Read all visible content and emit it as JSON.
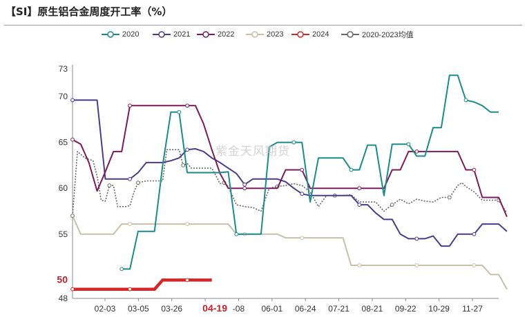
{
  "title": "【SI】原生铝合金周度开工率（%）",
  "watermark": "紫金天风期货",
  "legend": [
    {
      "name": "2020",
      "color": "#1a8a8a"
    },
    {
      "name": "2021",
      "color": "#4b3a8c"
    },
    {
      "name": "2022",
      "color": "#7a1a5a"
    },
    {
      "name": "2023",
      "color": "#c8bfa8"
    },
    {
      "name": "2024",
      "color": "#d62728"
    },
    {
      "name": "2020-2023均值",
      "color": "#666666"
    }
  ],
  "chart_data": {
    "type": "line",
    "title": "【SI】原生铝合金周度开工率（%）",
    "xlabel": "",
    "ylabel": "",
    "ylim": [
      48,
      73
    ],
    "y_ticks": [
      "48",
      "50",
      "55",
      "60",
      "65",
      "70",
      "73"
    ],
    "highlight_tick_y": "50",
    "x_ticks": [
      "02-03",
      "03-05",
      "03-26",
      "04-19",
      "-08",
      "06-01",
      "06-24",
      "07-21",
      "08-21",
      "09-22",
      "10-29",
      "11-27"
    ],
    "highlight_tick_x": "04-19",
    "grid": false,
    "legend_position": "top",
    "x_range": [
      0,
      52
    ],
    "series": [
      {
        "name": "2020",
        "color": "#1a8a8a",
        "points": [
          [
            6,
            51.2
          ],
          [
            7,
            51.2
          ],
          [
            8,
            55.3
          ],
          [
            9,
            55.3
          ],
          [
            10,
            55.3
          ],
          [
            11,
            62.5
          ],
          [
            12,
            68.3
          ],
          [
            13,
            68.3
          ],
          [
            14,
            61.7
          ],
          [
            15,
            61.7
          ],
          [
            16,
            61.7
          ],
          [
            17,
            61.7
          ],
          [
            18,
            61.7
          ],
          [
            19,
            61.8
          ],
          [
            20,
            55
          ],
          [
            21,
            55
          ],
          [
            22,
            55
          ],
          [
            23,
            55
          ],
          [
            24,
            64.5
          ],
          [
            25,
            65
          ],
          [
            26,
            65
          ],
          [
            27,
            65
          ],
          [
            28,
            65
          ],
          [
            29,
            58.5
          ],
          [
            30,
            63.3
          ],
          [
            31,
            63.3
          ],
          [
            32,
            63.3
          ],
          [
            33,
            63.3
          ],
          [
            34,
            62
          ],
          [
            35,
            62
          ],
          [
            36,
            64.7
          ],
          [
            37,
            64.7
          ],
          [
            38,
            59.2
          ],
          [
            39,
            64.8
          ],
          [
            40,
            64.8
          ],
          [
            41,
            64.8
          ],
          [
            42,
            63.5
          ],
          [
            43,
            63.5
          ],
          [
            44,
            66.6
          ],
          [
            45,
            66.6
          ],
          [
            46,
            72.3
          ],
          [
            47,
            72.3
          ],
          [
            48,
            69.6
          ],
          [
            49,
            69.4
          ],
          [
            50,
            69
          ],
          [
            51,
            68.3
          ],
          [
            52,
            68.3
          ]
        ]
      },
      {
        "name": "2021",
        "color": "#4b3a8c",
        "points": [
          [
            0,
            69.6
          ],
          [
            1,
            69.6
          ],
          [
            2,
            69.6
          ],
          [
            3,
            69.6
          ],
          [
            4,
            61
          ],
          [
            5,
            61
          ],
          [
            6,
            61
          ],
          [
            7,
            61
          ],
          [
            8,
            61.7
          ],
          [
            9,
            62.8
          ],
          [
            10,
            62.8
          ],
          [
            11,
            62.8
          ],
          [
            12,
            63
          ],
          [
            13,
            63.3
          ],
          [
            14,
            64.2
          ],
          [
            15,
            64.3
          ],
          [
            16,
            64
          ],
          [
            17,
            63.3
          ],
          [
            18,
            62.8
          ],
          [
            19,
            62.2
          ],
          [
            20,
            61.6
          ],
          [
            21,
            60.4
          ],
          [
            22,
            61
          ],
          [
            23,
            61
          ],
          [
            24,
            61
          ],
          [
            25,
            61
          ],
          [
            26,
            60.7
          ],
          [
            27,
            60
          ],
          [
            28,
            59.4
          ],
          [
            29,
            59.2
          ],
          [
            30,
            59.2
          ],
          [
            31,
            59.2
          ],
          [
            32,
            59.2
          ],
          [
            33,
            59.2
          ],
          [
            34,
            59.2
          ],
          [
            35,
            58.2
          ],
          [
            36,
            58.2
          ],
          [
            37,
            57.3
          ],
          [
            38,
            56.6
          ],
          [
            39,
            56.6
          ],
          [
            40,
            55
          ],
          [
            41,
            54.5
          ],
          [
            42,
            54.5
          ],
          [
            43,
            54.5
          ],
          [
            44,
            54.8
          ],
          [
            45,
            53.7
          ],
          [
            46,
            53.7
          ],
          [
            47,
            55
          ],
          [
            48,
            55
          ],
          [
            49,
            55
          ],
          [
            50,
            56.1
          ],
          [
            51,
            56.1
          ],
          [
            52,
            56.1
          ],
          [
            53,
            55.3
          ]
        ]
      },
      {
        "name": "2022",
        "color": "#7a1a5a",
        "points": [
          [
            0,
            65.3
          ],
          [
            1,
            64.8
          ],
          [
            2,
            62.8
          ],
          [
            3,
            59.7
          ],
          [
            4,
            61.8
          ],
          [
            5,
            64
          ],
          [
            6,
            64
          ],
          [
            7,
            69
          ],
          [
            8,
            69
          ],
          [
            9,
            69
          ],
          [
            10,
            69
          ],
          [
            11,
            69
          ],
          [
            12,
            69
          ],
          [
            13,
            69
          ],
          [
            14,
            69
          ],
          [
            15,
            69
          ],
          [
            16,
            67
          ],
          [
            17,
            64.2
          ],
          [
            18,
            61.6
          ],
          [
            19,
            60
          ],
          [
            20,
            60
          ],
          [
            21,
            60
          ],
          [
            22,
            60
          ],
          [
            23,
            60
          ],
          [
            24,
            60
          ],
          [
            25,
            60
          ],
          [
            26,
            62
          ],
          [
            27,
            62
          ],
          [
            28,
            62
          ],
          [
            29,
            60
          ],
          [
            30,
            60
          ],
          [
            31,
            60
          ],
          [
            32,
            60
          ],
          [
            33,
            60
          ],
          [
            34,
            60
          ],
          [
            35,
            60
          ],
          [
            36,
            60
          ],
          [
            37,
            60
          ],
          [
            38,
            60
          ],
          [
            39,
            62
          ],
          [
            40,
            62
          ],
          [
            41,
            64
          ],
          [
            42,
            64
          ],
          [
            43,
            64
          ],
          [
            44,
            64
          ],
          [
            45,
            64
          ],
          [
            46,
            64
          ],
          [
            47,
            64
          ],
          [
            48,
            62
          ],
          [
            49,
            62
          ],
          [
            50,
            59
          ],
          [
            51,
            59
          ],
          [
            52,
            59
          ],
          [
            53,
            56.9
          ]
        ]
      },
      {
        "name": "2023",
        "color": "#c8bfa8",
        "points": [
          [
            0,
            57
          ],
          [
            1,
            55
          ],
          [
            2,
            55
          ],
          [
            3,
            55
          ],
          [
            4,
            55
          ],
          [
            5,
            55
          ],
          [
            6,
            56.1
          ],
          [
            7,
            56.1
          ],
          [
            8,
            56.1
          ],
          [
            9,
            56.1
          ],
          [
            10,
            56.1
          ],
          [
            11,
            56.1
          ],
          [
            12,
            56.1
          ],
          [
            13,
            56.1
          ],
          [
            14,
            56.1
          ],
          [
            15,
            56.1
          ],
          [
            16,
            56.1
          ],
          [
            17,
            56.1
          ],
          [
            18,
            56.1
          ],
          [
            19,
            56.1
          ],
          [
            20,
            55
          ],
          [
            21,
            55
          ],
          [
            22,
            55
          ],
          [
            23,
            55
          ],
          [
            24,
            55
          ],
          [
            25,
            55
          ],
          [
            26,
            54.6
          ],
          [
            27,
            54.6
          ],
          [
            28,
            54.6
          ],
          [
            29,
            54.6
          ],
          [
            30,
            54.6
          ],
          [
            31,
            54.6
          ],
          [
            32,
            54.6
          ],
          [
            33,
            54.6
          ],
          [
            34,
            51.6
          ],
          [
            35,
            51.6
          ],
          [
            36,
            51.6
          ],
          [
            37,
            51.6
          ],
          [
            38,
            51.6
          ],
          [
            39,
            51.6
          ],
          [
            40,
            51.6
          ],
          [
            41,
            51.6
          ],
          [
            42,
            51.6
          ],
          [
            43,
            51.6
          ],
          [
            44,
            51.6
          ],
          [
            45,
            51.6
          ],
          [
            46,
            51.6
          ],
          [
            47,
            51.6
          ],
          [
            48,
            51.6
          ],
          [
            49,
            51.6
          ],
          [
            50,
            51.6
          ],
          [
            51,
            50.6
          ],
          [
            52,
            50.6
          ],
          [
            53,
            49
          ]
        ]
      },
      {
        "name": "2024",
        "color": "#d62728",
        "points": [
          [
            0,
            49
          ],
          [
            1,
            49
          ],
          [
            2,
            49
          ],
          [
            3,
            49
          ],
          [
            4,
            49
          ],
          [
            5,
            49
          ],
          [
            6,
            49
          ],
          [
            7,
            49
          ],
          [
            8,
            49
          ],
          [
            9,
            49
          ],
          [
            10,
            49
          ],
          [
            11,
            50
          ],
          [
            12,
            50
          ],
          [
            13,
            50
          ],
          [
            14,
            50
          ],
          [
            15,
            50
          ],
          [
            16,
            50
          ],
          [
            17,
            50
          ]
        ]
      },
      {
        "name": "2020-2023均值",
        "color": "#666666",
        "points": [
          [
            0,
            57
          ],
          [
            0.6,
            64
          ],
          [
            1.5,
            63.3
          ],
          [
            2.5,
            63
          ],
          [
            3,
            61.3
          ],
          [
            3.5,
            58.7
          ],
          [
            4,
            58.6
          ],
          [
            4.5,
            60.3
          ],
          [
            5,
            60.3
          ],
          [
            5.5,
            58
          ],
          [
            6,
            58
          ],
          [
            6.5,
            58
          ],
          [
            7,
            58.1
          ],
          [
            7.5,
            59.6
          ],
          [
            8,
            60.6
          ],
          [
            9,
            60.8
          ],
          [
            10,
            60.8
          ],
          [
            11,
            60.8
          ],
          [
            11.5,
            64.2
          ],
          [
            12,
            64.2
          ],
          [
            13,
            64.2
          ],
          [
            13.5,
            62.5
          ],
          [
            14,
            62.7
          ],
          [
            14.5,
            62.2
          ],
          [
            15,
            62.2
          ],
          [
            16,
            62.2
          ],
          [
            17,
            62.2
          ],
          [
            18,
            60.5
          ],
          [
            18.5,
            60.6
          ],
          [
            19,
            60.2
          ],
          [
            20,
            58.2
          ],
          [
            21,
            58
          ],
          [
            22,
            57.9
          ],
          [
            23,
            57.5
          ],
          [
            24,
            60
          ],
          [
            25,
            60.2
          ],
          [
            26,
            60.3
          ],
          [
            27,
            60.5
          ],
          [
            28,
            60.3
          ],
          [
            29,
            59.6
          ],
          [
            30,
            58
          ],
          [
            31,
            59.2
          ],
          [
            32,
            59.2
          ],
          [
            33,
            59.2
          ],
          [
            34,
            59.3
          ],
          [
            35,
            58.5
          ],
          [
            36,
            58.5
          ],
          [
            37,
            58.5
          ],
          [
            38,
            57.5
          ],
          [
            39,
            58.2
          ],
          [
            40,
            58.8
          ],
          [
            41,
            58.3
          ],
          [
            42,
            58.8
          ],
          [
            43,
            58.6
          ],
          [
            44,
            58.5
          ],
          [
            45,
            59
          ],
          [
            46,
            59
          ],
          [
            47,
            60.3
          ],
          [
            47.5,
            60.6
          ],
          [
            48,
            60.2
          ],
          [
            49,
            59.6
          ],
          [
            50,
            58.7
          ],
          [
            51,
            58.7
          ],
          [
            52,
            58.7
          ],
          [
            53,
            57.3
          ]
        ]
      }
    ]
  }
}
